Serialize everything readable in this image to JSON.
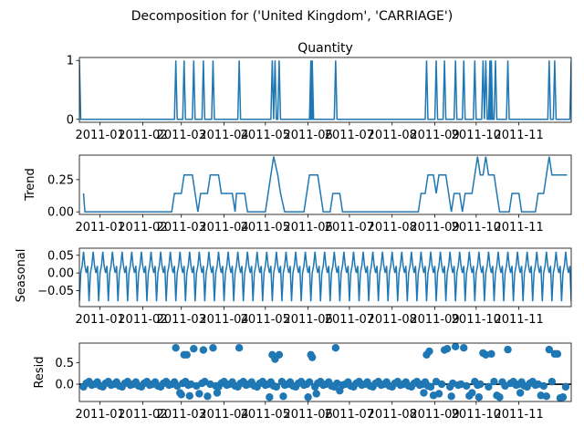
{
  "suptitle": "Decomposition for ('United Kingdom', 'CARRIAGE')",
  "colors": {
    "series": "#1f77b4",
    "axis": "#000000",
    "background": "#ffffff"
  },
  "x_tick_labels": [
    "2011-01",
    "2011-02",
    "2011-03",
    "2011-04",
    "2011-05",
    "2011-06",
    "2011-07",
    "2011-08",
    "2011-09",
    "2011-10",
    "2011-11"
  ],
  "chart_data": [
    {
      "type": "line",
      "title": "Quantity",
      "ylabel": "",
      "xlim": [
        "2010-12-17",
        "2011-12-09"
      ],
      "ylim": [
        -0.05,
        1.05
      ],
      "yticks": [
        0,
        1
      ],
      "ytick_labels": [
        "0",
        "1"
      ],
      "x_ticks": [
        "2011-01-01",
        "2011-02-01",
        "2011-03-01",
        "2011-04-01",
        "2011-05-01",
        "2011-06-01",
        "2011-07-01",
        "2011-08-01",
        "2011-09-01",
        "2011-10-01",
        "2011-11-01"
      ],
      "x_tick_labels": [
        "2011-01",
        "2011-02",
        "2011-03",
        "2011-04",
        "2011-05",
        "2011-06",
        "2011-07",
        "2011-08",
        "2011-09",
        "2011-10",
        "2011-11"
      ],
      "baseline": 0,
      "spike_value": 1,
      "spike_dates": [
        "2010-12-17",
        "2011-02-25",
        "2011-03-03",
        "2011-03-10",
        "2011-03-17",
        "2011-03-24",
        "2011-04-12",
        "2011-05-06",
        "2011-05-08",
        "2011-05-11",
        "2011-06-03",
        "2011-06-04",
        "2011-06-21",
        "2011-08-26",
        "2011-09-02",
        "2011-09-08",
        "2011-09-16",
        "2011-09-22",
        "2011-09-30",
        "2011-10-06",
        "2011-10-08",
        "2011-10-11",
        "2011-10-12",
        "2011-10-15",
        "2011-10-24",
        "2011-11-23",
        "2011-11-27",
        "2011-12-09"
      ]
    },
    {
      "type": "line",
      "title": "",
      "ylabel": "Trend",
      "xlim": [
        "2010-12-17",
        "2011-12-09"
      ],
      "ylim": [
        -0.02,
        0.44
      ],
      "yticks": [
        0.0,
        0.25
      ],
      "ytick_labels": [
        "0.00",
        "0.25"
      ],
      "x_ticks": [
        "2011-01-01",
        "2011-02-01",
        "2011-03-01",
        "2011-04-01",
        "2011-05-01",
        "2011-06-01",
        "2011-07-01",
        "2011-08-01",
        "2011-09-01",
        "2011-10-01",
        "2011-11-01"
      ],
      "x_tick_labels": [
        "2011-01",
        "2011-02",
        "2011-03",
        "2011-04",
        "2011-05",
        "2011-06",
        "2011-07",
        "2011-08",
        "2011-09",
        "2011-10",
        "2011-11"
      ],
      "points": [
        [
          "2010-12-20",
          0.143
        ],
        [
          "2010-12-21",
          0.0
        ],
        [
          "2011-02-22",
          0.0
        ],
        [
          "2011-02-24",
          0.143
        ],
        [
          "2011-03-01",
          0.143
        ],
        [
          "2011-03-03",
          0.286
        ],
        [
          "2011-03-09",
          0.286
        ],
        [
          "2011-03-11",
          0.143
        ],
        [
          "2011-03-13",
          0.0
        ],
        [
          "2011-03-15",
          0.143
        ],
        [
          "2011-03-20",
          0.143
        ],
        [
          "2011-03-22",
          0.286
        ],
        [
          "2011-03-28",
          0.286
        ],
        [
          "2011-03-30",
          0.143
        ],
        [
          "2011-04-07",
          0.143
        ],
        [
          "2011-04-09",
          0.0
        ],
        [
          "2011-04-10",
          0.143
        ],
        [
          "2011-04-16",
          0.143
        ],
        [
          "2011-04-18",
          0.0
        ],
        [
          "2011-05-01",
          0.0
        ],
        [
          "2011-05-03",
          0.143
        ],
        [
          "2011-05-05",
          0.286
        ],
        [
          "2011-05-07",
          0.429
        ],
        [
          "2011-05-10",
          0.286
        ],
        [
          "2011-05-12",
          0.143
        ],
        [
          "2011-05-15",
          0.0
        ],
        [
          "2011-05-29",
          0.0
        ],
        [
          "2011-05-31",
          0.143
        ],
        [
          "2011-06-02",
          0.286
        ],
        [
          "2011-06-08",
          0.286
        ],
        [
          "2011-06-10",
          0.143
        ],
        [
          "2011-06-12",
          0.0
        ],
        [
          "2011-06-17",
          0.0
        ],
        [
          "2011-06-19",
          0.143
        ],
        [
          "2011-06-24",
          0.143
        ],
        [
          "2011-06-26",
          0.0
        ],
        [
          "2011-08-20",
          0.0
        ],
        [
          "2011-08-22",
          0.143
        ],
        [
          "2011-08-25",
          0.143
        ],
        [
          "2011-08-27",
          0.286
        ],
        [
          "2011-08-31",
          0.286
        ],
        [
          "2011-09-02",
          0.143
        ],
        [
          "2011-09-04",
          0.286
        ],
        [
          "2011-09-09",
          0.286
        ],
        [
          "2011-09-11",
          0.143
        ],
        [
          "2011-09-13",
          0.0
        ],
        [
          "2011-09-15",
          0.143
        ],
        [
          "2011-09-19",
          0.143
        ],
        [
          "2011-09-21",
          0.0
        ],
        [
          "2011-09-23",
          0.143
        ],
        [
          "2011-09-28",
          0.143
        ],
        [
          "2011-09-30",
          0.286
        ],
        [
          "2011-10-02",
          0.429
        ],
        [
          "2011-10-04",
          0.286
        ],
        [
          "2011-10-06",
          0.286
        ],
        [
          "2011-10-08",
          0.429
        ],
        [
          "2011-10-10",
          0.286
        ],
        [
          "2011-10-14",
          0.286
        ],
        [
          "2011-10-16",
          0.143
        ],
        [
          "2011-10-18",
          0.0
        ],
        [
          "2011-10-25",
          0.0
        ],
        [
          "2011-10-27",
          0.143
        ],
        [
          "2011-11-01",
          0.143
        ],
        [
          "2011-11-03",
          0.0
        ],
        [
          "2011-11-13",
          0.0
        ],
        [
          "2011-11-15",
          0.143
        ],
        [
          "2011-11-19",
          0.143
        ],
        [
          "2011-11-21",
          0.286
        ],
        [
          "2011-11-23",
          0.429
        ],
        [
          "2011-11-25",
          0.286
        ],
        [
          "2011-12-06",
          0.286
        ]
      ]
    },
    {
      "type": "line",
      "title": "",
      "ylabel": "Seasonal",
      "xlim": [
        "2010-12-17",
        "2011-12-09"
      ],
      "ylim": [
        -0.095,
        0.07
      ],
      "yticks": [
        -0.05,
        0.0,
        0.05
      ],
      "ytick_labels": [
        "−0.05",
        "0.00",
        "0.05"
      ],
      "x_ticks": [
        "2011-01-01",
        "2011-02-01",
        "2011-03-01",
        "2011-04-01",
        "2011-05-01",
        "2011-06-01",
        "2011-07-01",
        "2011-08-01",
        "2011-09-01",
        "2011-10-01",
        "2011-11-01"
      ],
      "x_tick_labels": [
        "2011-01",
        "2011-02",
        "2011-03",
        "2011-04",
        "2011-05",
        "2011-06",
        "2011-07",
        "2011-08",
        "2011-09",
        "2011-10",
        "2011-11"
      ],
      "period_days": 7,
      "pattern": [
        -0.08,
        0.0,
        0.02,
        0.06,
        0.02,
        0.0,
        0.02
      ],
      "start": "2010-12-17",
      "end": "2011-12-09"
    },
    {
      "type": "scatter",
      "title": "",
      "ylabel": "Resid",
      "xlim": [
        "2010-12-17",
        "2011-12-09"
      ],
      "ylim": [
        -0.4,
        0.95
      ],
      "yticks": [
        0.0,
        0.5
      ],
      "ytick_labels": [
        "0.0",
        "0.5"
      ],
      "hline": 0,
      "x_ticks": [
        "2011-01-01",
        "2011-02-01",
        "2011-03-01",
        "2011-04-01",
        "2011-05-01",
        "2011-06-01",
        "2011-07-01",
        "2011-08-01",
        "2011-09-01",
        "2011-10-01",
        "2011-11-01"
      ],
      "x_tick_labels": [
        "2011-01",
        "2011-02",
        "2011-03",
        "2011-04",
        "2011-05",
        "2011-06",
        "2011-07",
        "2011-08",
        "2011-09",
        "2011-10",
        "2011-11"
      ],
      "start": "2010-12-20",
      "end": "2011-12-06",
      "baseline_pattern": [
        -0.06,
        0.02,
        0.06,
        -0.02,
        0.0,
        0.05,
        -0.04
      ],
      "high_points": [
        [
          "2011-02-25",
          0.84
        ],
        [
          "2011-03-03",
          0.68
        ],
        [
          "2011-03-05",
          0.68
        ],
        [
          "2011-03-10",
          0.82
        ],
        [
          "2011-03-17",
          0.79
        ],
        [
          "2011-03-24",
          0.84
        ],
        [
          "2011-04-12",
          0.84
        ],
        [
          "2011-05-06",
          0.68
        ],
        [
          "2011-05-08",
          0.58
        ],
        [
          "2011-05-11",
          0.68
        ],
        [
          "2011-06-03",
          0.68
        ],
        [
          "2011-06-04",
          0.62
        ],
        [
          "2011-06-21",
          0.84
        ],
        [
          "2011-08-26",
          0.68
        ],
        [
          "2011-08-28",
          0.76
        ],
        [
          "2011-09-08",
          0.79
        ],
        [
          "2011-09-10",
          0.82
        ],
        [
          "2011-09-16",
          0.87
        ],
        [
          "2011-09-22",
          0.84
        ],
        [
          "2011-10-06",
          0.72
        ],
        [
          "2011-10-08",
          0.68
        ],
        [
          "2011-10-12",
          0.7
        ],
        [
          "2011-10-24",
          0.8
        ],
        [
          "2011-11-23",
          0.8
        ],
        [
          "2011-11-27",
          0.7
        ],
        [
          "2011-11-29",
          0.7
        ]
      ],
      "low_points": [
        [
          "2011-02-28",
          -0.2
        ],
        [
          "2011-03-01",
          -0.24
        ],
        [
          "2011-03-07",
          -0.27
        ],
        [
          "2011-03-14",
          -0.22
        ],
        [
          "2011-03-20",
          -0.28
        ],
        [
          "2011-03-27",
          -0.2
        ],
        [
          "2011-05-04",
          -0.3
        ],
        [
          "2011-05-14",
          -0.28
        ],
        [
          "2011-06-01",
          -0.3
        ],
        [
          "2011-06-07",
          -0.22
        ],
        [
          "2011-06-24",
          -0.15
        ],
        [
          "2011-08-24",
          -0.2
        ],
        [
          "2011-08-31",
          -0.26
        ],
        [
          "2011-09-04",
          -0.22
        ],
        [
          "2011-09-13",
          -0.28
        ],
        [
          "2011-09-26",
          -0.27
        ],
        [
          "2011-09-28",
          -0.2
        ],
        [
          "2011-10-03",
          -0.3
        ],
        [
          "2011-10-16",
          -0.26
        ],
        [
          "2011-10-18",
          -0.3
        ],
        [
          "2011-11-02",
          -0.2
        ],
        [
          "2011-11-17",
          -0.26
        ],
        [
          "2011-11-21",
          -0.28
        ],
        [
          "2011-12-01",
          -0.32
        ],
        [
          "2011-12-03",
          -0.3
        ]
      ]
    }
  ]
}
